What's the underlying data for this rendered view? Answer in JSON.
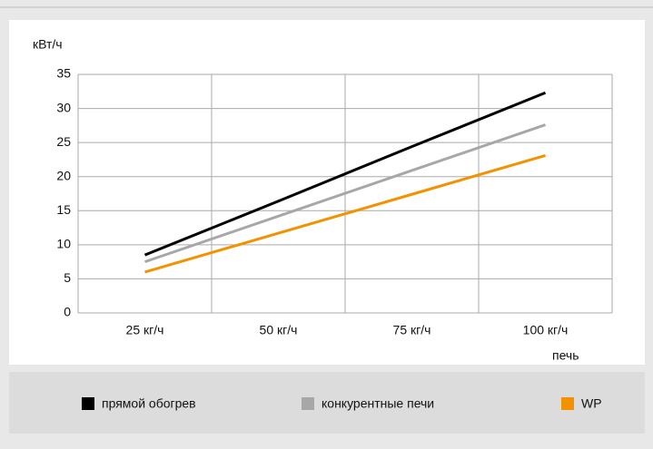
{
  "chart_data": {
    "type": "line",
    "y_label": "кВт/ч",
    "x_label": "печь",
    "categories": [
      "25 кг/ч",
      "50 кг/ч",
      "75 кг/ч",
      "100 кг/ч"
    ],
    "series": [
      {
        "name": "прямой обогрев",
        "color": "#000000",
        "values": [
          8.5,
          16.4,
          24.4,
          32.3
        ]
      },
      {
        "name": "конкурентные печи",
        "color": "#a6a8a8",
        "values": [
          7.5,
          14.2,
          20.9,
          27.6
        ]
      },
      {
        "name": "WP",
        "color": "#f39200",
        "values": [
          6,
          11.7,
          17.4,
          23.1
        ]
      }
    ],
    "ylim": [
      0,
      35
    ],
    "yticks": [
      0,
      5,
      10,
      15,
      20,
      25,
      30,
      35
    ],
    "grid": true
  }
}
